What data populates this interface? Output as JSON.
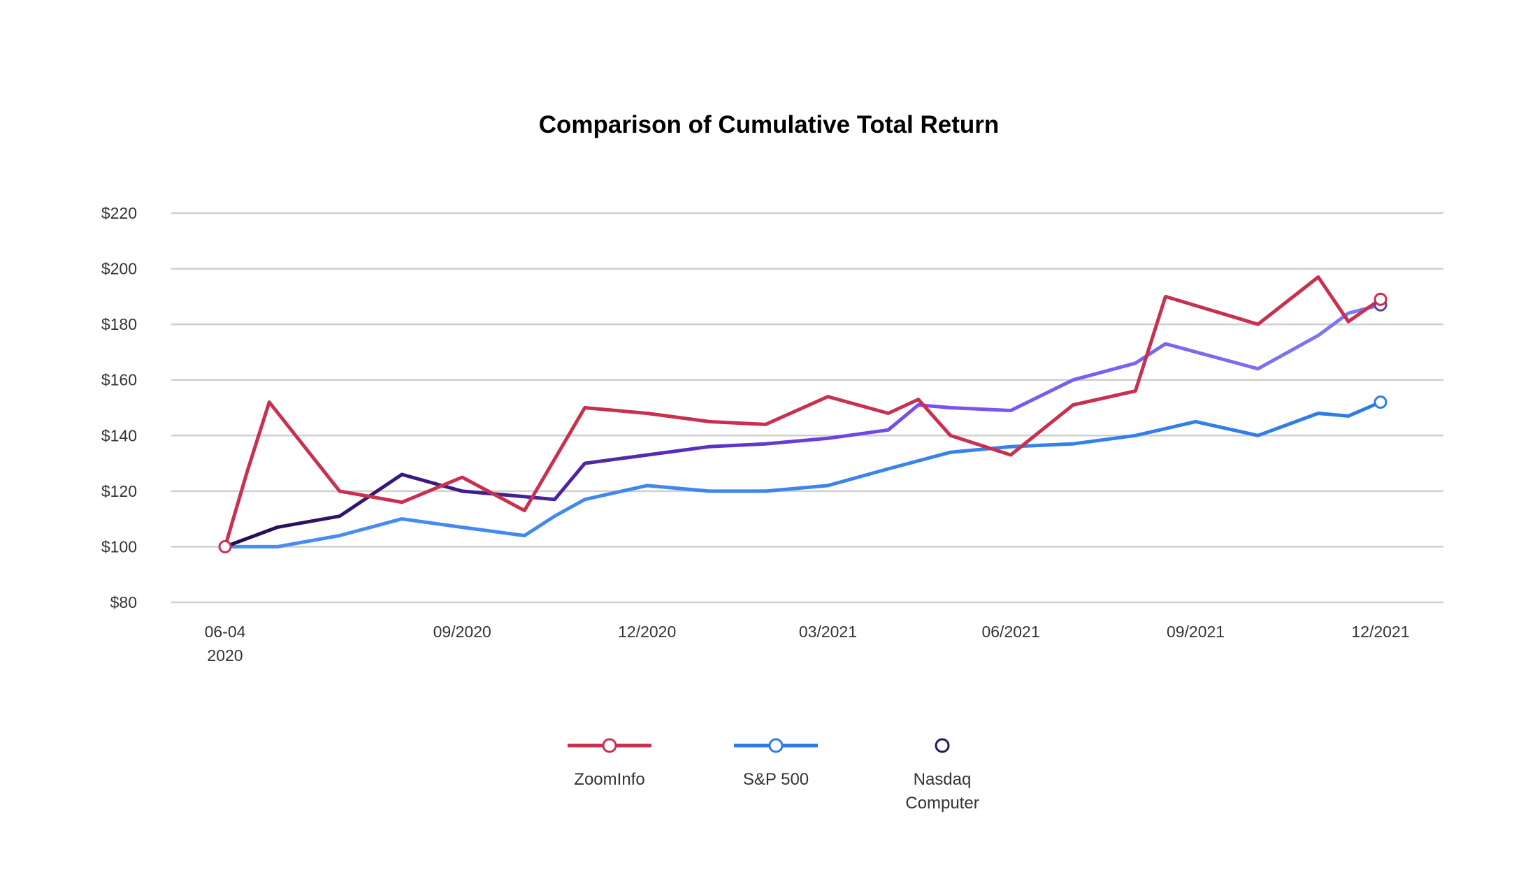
{
  "chart_data": {
    "type": "line",
    "title": "Comparison of Cumulative Total Return",
    "xlabel": "",
    "ylabel": "",
    "ylim": [
      80,
      220
    ],
    "yticks": [
      80,
      100,
      120,
      140,
      160,
      180,
      200,
      220
    ],
    "ytick_labels": [
      "$80",
      "$100",
      "$120",
      "$140",
      "$160",
      "$180",
      "$200",
      "$220"
    ],
    "grid": true,
    "legend_position": "bottom-center",
    "x_dates": [
      "2020-06-04",
      "2020-06-15",
      "2020-06-30",
      "2020-07-31",
      "2020-08-31",
      "2020-09-30",
      "2020-10-31",
      "2020-11-30",
      "2020-12-31",
      "2021-01-31",
      "2021-02-28",
      "2021-03-31",
      "2021-04-30",
      "2021-05-31",
      "2021-06-30",
      "2021-07-31",
      "2021-08-31",
      "2021-09-30",
      "2021-10-31",
      "2021-11-30",
      "2021-12-31"
    ],
    "xticks": [
      {
        "date": "2020-06-04",
        "label": [
          "06-04",
          "2020"
        ]
      },
      {
        "date": "2020-09-30",
        "label": [
          "09/2020"
        ]
      },
      {
        "date": "2020-12-31",
        "label": [
          "12/2020"
        ]
      },
      {
        "date": "2021-03-31",
        "label": [
          "03/2021"
        ]
      },
      {
        "date": "2021-06-30",
        "label": [
          "06/2021"
        ]
      },
      {
        "date": "2021-09-30",
        "label": [
          "09/2021"
        ]
      },
      {
        "date": "2021-12-31",
        "label": [
          "12/2021"
        ]
      }
    ],
    "series": [
      {
        "name": "ZoomInfo",
        "points": [
          [
            "2020-06-04",
            100
          ],
          [
            "2020-06-15",
            127
          ],
          [
            "2020-06-26",
            152
          ],
          [
            "2020-07-31",
            120
          ],
          [
            "2020-08-31",
            116
          ],
          [
            "2020-09-30",
            125
          ],
          [
            "2020-10-31",
            113
          ],
          [
            "2020-11-30",
            150
          ],
          [
            "2020-12-31",
            148
          ],
          [
            "2021-01-31",
            145
          ],
          [
            "2021-02-28",
            144
          ],
          [
            "2021-03-31",
            154
          ],
          [
            "2021-04-30",
            148
          ],
          [
            "2021-05-15",
            153
          ],
          [
            "2021-05-31",
            140
          ],
          [
            "2021-06-30",
            133
          ],
          [
            "2021-07-31",
            151
          ],
          [
            "2021-08-31",
            156
          ],
          [
            "2021-09-15",
            190
          ],
          [
            "2021-10-31",
            180
          ],
          [
            "2021-11-30",
            197
          ],
          [
            "2021-12-15",
            181
          ],
          [
            "2021-12-31",
            189
          ]
        ]
      },
      {
        "name": "S&P 500",
        "points": [
          [
            "2020-06-04",
            100
          ],
          [
            "2020-06-30",
            100
          ],
          [
            "2020-07-31",
            104
          ],
          [
            "2020-08-31",
            110
          ],
          [
            "2020-09-30",
            107
          ],
          [
            "2020-10-31",
            104
          ],
          [
            "2020-11-15",
            111
          ],
          [
            "2020-11-30",
            117
          ],
          [
            "2020-12-31",
            122
          ],
          [
            "2021-01-31",
            120
          ],
          [
            "2021-02-28",
            120
          ],
          [
            "2021-03-31",
            122
          ],
          [
            "2021-04-30",
            128
          ],
          [
            "2021-05-31",
            134
          ],
          [
            "2021-06-30",
            136
          ],
          [
            "2021-07-31",
            137
          ],
          [
            "2021-08-31",
            140
          ],
          [
            "2021-09-30",
            145
          ],
          [
            "2021-10-31",
            140
          ],
          [
            "2021-11-30",
            148
          ],
          [
            "2021-12-15",
            147
          ],
          [
            "2021-12-31",
            152
          ]
        ]
      },
      {
        "name": "Nasdaq Computer",
        "points": [
          [
            "2020-06-04",
            100
          ],
          [
            "2020-06-30",
            107
          ],
          [
            "2020-07-31",
            111
          ],
          [
            "2020-08-31",
            126
          ],
          [
            "2020-09-30",
            120
          ],
          [
            "2020-10-31",
            118
          ],
          [
            "2020-11-15",
            117
          ],
          [
            "2020-11-30",
            130
          ],
          [
            "2020-12-31",
            133
          ],
          [
            "2021-01-31",
            136
          ],
          [
            "2021-02-28",
            137
          ],
          [
            "2021-03-31",
            139
          ],
          [
            "2021-04-30",
            142
          ],
          [
            "2021-05-15",
            151
          ],
          [
            "2021-05-31",
            150
          ],
          [
            "2021-06-30",
            149
          ],
          [
            "2021-07-31",
            160
          ],
          [
            "2021-08-31",
            166
          ],
          [
            "2021-09-15",
            173
          ],
          [
            "2021-10-31",
            164
          ],
          [
            "2021-11-30",
            176
          ],
          [
            "2021-12-15",
            184
          ],
          [
            "2021-12-31",
            187
          ]
        ]
      }
    ],
    "legend": [
      {
        "label_lines": [
          "ZoomInfo"
        ]
      },
      {
        "label_lines": [
          "S&P 500"
        ]
      },
      {
        "label_lines": [
          "Nasdaq",
          "Computer"
        ]
      }
    ],
    "colors": {
      "zoominfo": "#c8304f",
      "sp500": "#2f7be6",
      "sp500_start": "#4a8ef0",
      "nasdaq_start": "#230c4e",
      "nasdaq_mid": "#6a3fe0",
      "nasdaq_end": "#7b7cf0"
    }
  }
}
